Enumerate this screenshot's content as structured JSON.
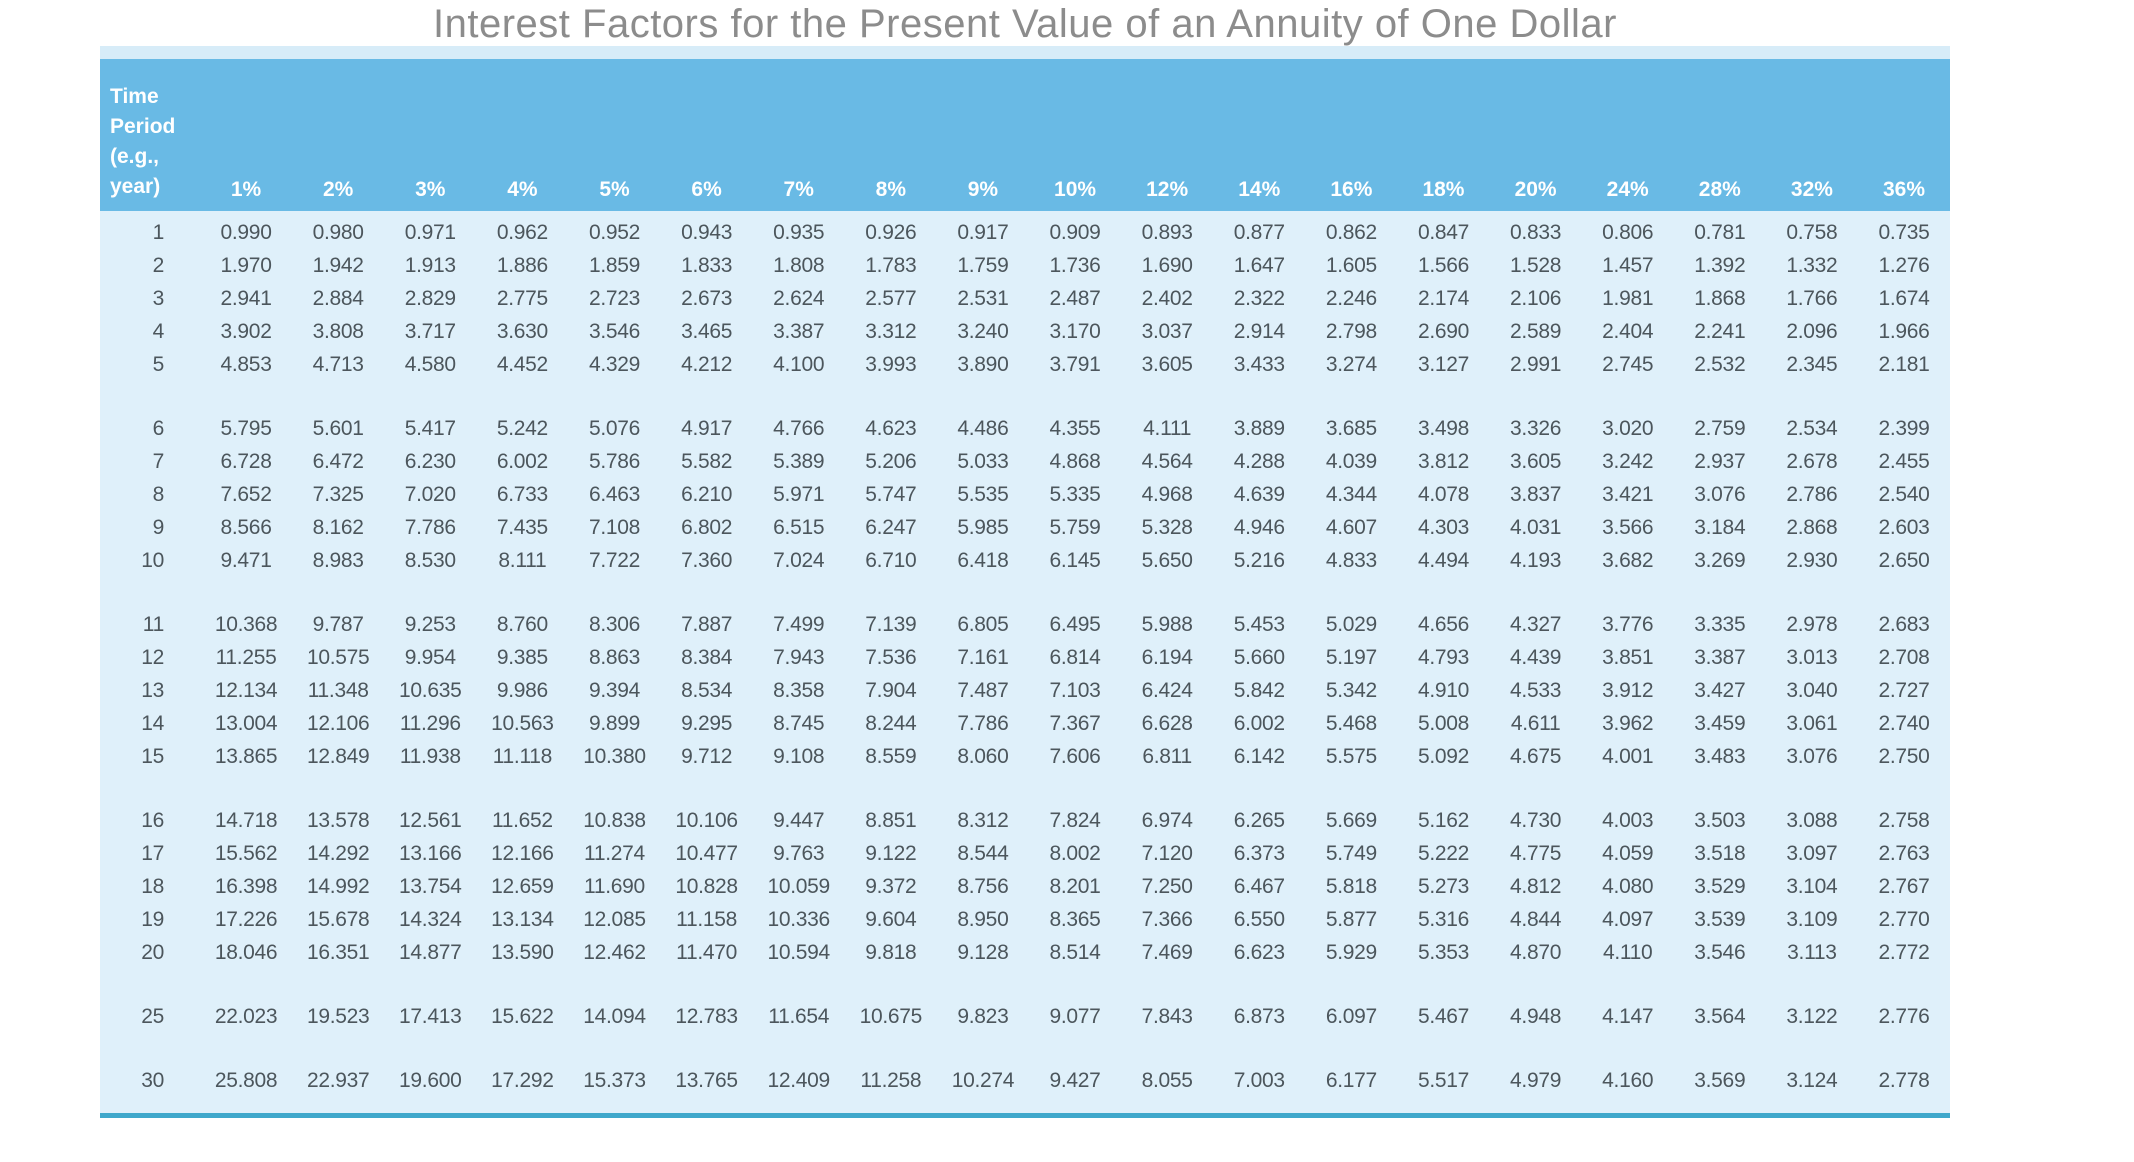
{
  "title": "Interest Factors for the Present Value of an Annuity of One Dollar",
  "colors": {
    "header_bg": "#69BAE5",
    "pale_strip": "#D7ECF8",
    "body_bg": "#DFF0FA",
    "border_color": "#3FA8CB",
    "title_color": "#8C8C8C",
    "text_color": "#4C565C"
  },
  "table": {
    "corner_header": "Time\nPeriod\n(e.g.,\nyear)",
    "rate_headers": [
      "1%",
      "2%",
      "3%",
      "4%",
      "5%",
      "6%",
      "7%",
      "8%",
      "9%",
      "10%",
      "12%",
      "14%",
      "16%",
      "18%",
      "20%",
      "24%",
      "28%",
      "32%",
      "36%"
    ],
    "row_groups": [
      {
        "rows": [
          {
            "period": "1",
            "values": [
              "0.990",
              "0.980",
              "0.971",
              "0.962",
              "0.952",
              "0.943",
              "0.935",
              "0.926",
              "0.917",
              "0.909",
              "0.893",
              "0.877",
              "0.862",
              "0.847",
              "0.833",
              "0.806",
              "0.781",
              "0.758",
              "0.735"
            ]
          },
          {
            "period": "2",
            "values": [
              "1.970",
              "1.942",
              "1.913",
              "1.886",
              "1.859",
              "1.833",
              "1.808",
              "1.783",
              "1.759",
              "1.736",
              "1.690",
              "1.647",
              "1.605",
              "1.566",
              "1.528",
              "1.457",
              "1.392",
              "1.332",
              "1.276"
            ]
          },
          {
            "period": "3",
            "values": [
              "2.941",
              "2.884",
              "2.829",
              "2.775",
              "2.723",
              "2.673",
              "2.624",
              "2.577",
              "2.531",
              "2.487",
              "2.402",
              "2.322",
              "2.246",
              "2.174",
              "2.106",
              "1.981",
              "1.868",
              "1.766",
              "1.674"
            ]
          },
          {
            "period": "4",
            "values": [
              "3.902",
              "3.808",
              "3.717",
              "3.630",
              "3.546",
              "3.465",
              "3.387",
              "3.312",
              "3.240",
              "3.170",
              "3.037",
              "2.914",
              "2.798",
              "2.690",
              "2.589",
              "2.404",
              "2.241",
              "2.096",
              "1.966"
            ]
          },
          {
            "period": "5",
            "values": [
              "4.853",
              "4.713",
              "4.580",
              "4.452",
              "4.329",
              "4.212",
              "4.100",
              "3.993",
              "3.890",
              "3.791",
              "3.605",
              "3.433",
              "3.274",
              "3.127",
              "2.991",
              "2.745",
              "2.532",
              "2.345",
              "2.181"
            ]
          }
        ]
      },
      {
        "rows": [
          {
            "period": "6",
            "values": [
              "5.795",
              "5.601",
              "5.417",
              "5.242",
              "5.076",
              "4.917",
              "4.766",
              "4.623",
              "4.486",
              "4.355",
              "4.111",
              "3.889",
              "3.685",
              "3.498",
              "3.326",
              "3.020",
              "2.759",
              "2.534",
              "2.399"
            ]
          },
          {
            "period": "7",
            "values": [
              "6.728",
              "6.472",
              "6.230",
              "6.002",
              "5.786",
              "5.582",
              "5.389",
              "5.206",
              "5.033",
              "4.868",
              "4.564",
              "4.288",
              "4.039",
              "3.812",
              "3.605",
              "3.242",
              "2.937",
              "2.678",
              "2.455"
            ]
          },
          {
            "period": "8",
            "values": [
              "7.652",
              "7.325",
              "7.020",
              "6.733",
              "6.463",
              "6.210",
              "5.971",
              "5.747",
              "5.535",
              "5.335",
              "4.968",
              "4.639",
              "4.344",
              "4.078",
              "3.837",
              "3.421",
              "3.076",
              "2.786",
              "2.540"
            ]
          },
          {
            "period": "9",
            "values": [
              "8.566",
              "8.162",
              "7.786",
              "7.435",
              "7.108",
              "6.802",
              "6.515",
              "6.247",
              "5.985",
              "5.759",
              "5.328",
              "4.946",
              "4.607",
              "4.303",
              "4.031",
              "3.566",
              "3.184",
              "2.868",
              "2.603"
            ]
          },
          {
            "period": "10",
            "values": [
              "9.471",
              "8.983",
              "8.530",
              "8.111",
              "7.722",
              "7.360",
              "7.024",
              "6.710",
              "6.418",
              "6.145",
              "5.650",
              "5.216",
              "4.833",
              "4.494",
              "4.193",
              "3.682",
              "3.269",
              "2.930",
              "2.650"
            ]
          }
        ]
      },
      {
        "rows": [
          {
            "period": "11",
            "values": [
              "10.368",
              "9.787",
              "9.253",
              "8.760",
              "8.306",
              "7.887",
              "7.499",
              "7.139",
              "6.805",
              "6.495",
              "5.988",
              "5.453",
              "5.029",
              "4.656",
              "4.327",
              "3.776",
              "3.335",
              "2.978",
              "2.683"
            ]
          },
          {
            "period": "12",
            "values": [
              "11.255",
              "10.575",
              "9.954",
              "9.385",
              "8.863",
              "8.384",
              "7.943",
              "7.536",
              "7.161",
              "6.814",
              "6.194",
              "5.660",
              "5.197",
              "4.793",
              "4.439",
              "3.851",
              "3.387",
              "3.013",
              "2.708"
            ]
          },
          {
            "period": "13",
            "values": [
              "12.134",
              "11.348",
              "10.635",
              "9.986",
              "9.394",
              "8.534",
              "8.358",
              "7.904",
              "7.487",
              "7.103",
              "6.424",
              "5.842",
              "5.342",
              "4.910",
              "4.533",
              "3.912",
              "3.427",
              "3.040",
              "2.727"
            ]
          },
          {
            "period": "14",
            "values": [
              "13.004",
              "12.106",
              "11.296",
              "10.563",
              "9.899",
              "9.295",
              "8.745",
              "8.244",
              "7.786",
              "7.367",
              "6.628",
              "6.002",
              "5.468",
              "5.008",
              "4.611",
              "3.962",
              "3.459",
              "3.061",
              "2.740"
            ]
          },
          {
            "period": "15",
            "values": [
              "13.865",
              "12.849",
              "11.938",
              "11.118",
              "10.380",
              "9.712",
              "9.108",
              "8.559",
              "8.060",
              "7.606",
              "6.811",
              "6.142",
              "5.575",
              "5.092",
              "4.675",
              "4.001",
              "3.483",
              "3.076",
              "2.750"
            ]
          }
        ]
      },
      {
        "rows": [
          {
            "period": "16",
            "values": [
              "14.718",
              "13.578",
              "12.561",
              "11.652",
              "10.838",
              "10.106",
              "9.447",
              "8.851",
              "8.312",
              "7.824",
              "6.974",
              "6.265",
              "5.669",
              "5.162",
              "4.730",
              "4.003",
              "3.503",
              "3.088",
              "2.758"
            ]
          },
          {
            "period": "17",
            "values": [
              "15.562",
              "14.292",
              "13.166",
              "12.166",
              "11.274",
              "10.477",
              "9.763",
              "9.122",
              "8.544",
              "8.002",
              "7.120",
              "6.373",
              "5.749",
              "5.222",
              "4.775",
              "4.059",
              "3.518",
              "3.097",
              "2.763"
            ]
          },
          {
            "period": "18",
            "values": [
              "16.398",
              "14.992",
              "13.754",
              "12.659",
              "11.690",
              "10.828",
              "10.059",
              "9.372",
              "8.756",
              "8.201",
              "7.250",
              "6.467",
              "5.818",
              "5.273",
              "4.812",
              "4.080",
              "3.529",
              "3.104",
              "2.767"
            ]
          },
          {
            "period": "19",
            "values": [
              "17.226",
              "15.678",
              "14.324",
              "13.134",
              "12.085",
              "11.158",
              "10.336",
              "9.604",
              "8.950",
              "8.365",
              "7.366",
              "6.550",
              "5.877",
              "5.316",
              "4.844",
              "4.097",
              "3.539",
              "3.109",
              "2.770"
            ]
          },
          {
            "period": "20",
            "values": [
              "18.046",
              "16.351",
              "14.877",
              "13.590",
              "12.462",
              "11.470",
              "10.594",
              "9.818",
              "9.128",
              "8.514",
              "7.469",
              "6.623",
              "5.929",
              "5.353",
              "4.870",
              "4.110",
              "3.546",
              "3.113",
              "2.772"
            ]
          }
        ]
      },
      {
        "rows": [
          {
            "period": "25",
            "values": [
              "22.023",
              "19.523",
              "17.413",
              "15.622",
              "14.094",
              "12.783",
              "11.654",
              "10.675",
              "9.823",
              "9.077",
              "7.843",
              "6.873",
              "6.097",
              "5.467",
              "4.948",
              "4.147",
              "3.564",
              "3.122",
              "2.776"
            ]
          }
        ]
      },
      {
        "rows": [
          {
            "period": "30",
            "values": [
              "25.808",
              "22.937",
              "19.600",
              "17.292",
              "15.373",
              "13.765",
              "12.409",
              "11.258",
              "10.274",
              "9.427",
              "8.055",
              "7.003",
              "6.177",
              "5.517",
              "4.979",
              "4.160",
              "3.569",
              "3.124",
              "2.778"
            ]
          }
        ]
      }
    ]
  }
}
